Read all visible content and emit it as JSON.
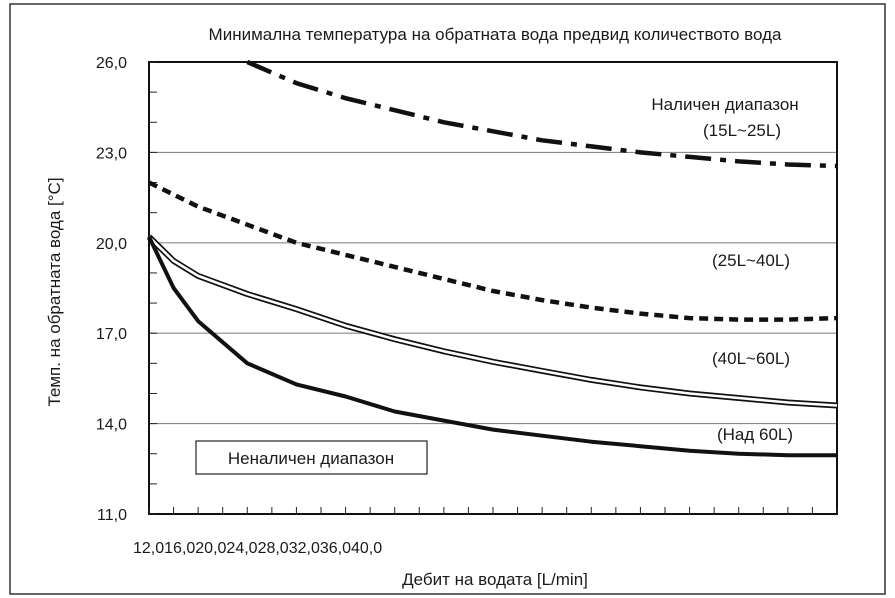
{
  "chart_data": {
    "type": "line",
    "title": "Минимална температура на обратната вода предвид количеството вода",
    "xlabel": "Дебит на водата [L/min]",
    "ylabel": "Темп. на обратната вода [°C]",
    "x_tick_text": "12,016,020,024,028,032,036,040,0",
    "y_ticks": [
      "26,0",
      "23,0",
      "20,0",
      "17,0",
      "14,0",
      "11,0"
    ],
    "y_tick_values": [
      26,
      23,
      20,
      17,
      14,
      11
    ],
    "xlim": [
      12,
      40
    ],
    "ylim": [
      11,
      26
    ],
    "grid": "horizontal",
    "annotations": {
      "range_available_title": "Наличен диапазон",
      "s1_label": "(15L~25L)",
      "s2_label": "(25L~40L)",
      "s3_label": "(40L~60L)",
      "s4_label": "(Над 60L)",
      "unavailable_label": "Неналичен диапазон"
    },
    "series": [
      {
        "style": "dash-dot",
        "x": [
          16.0,
          18.0,
          20.0,
          22.0,
          24.0,
          26.0,
          28.0,
          30.0,
          32.0,
          34.0,
          36.0,
          38.0,
          40.0
        ],
        "values": [
          26.0,
          25.3,
          24.8,
          24.4,
          24.0,
          23.7,
          23.4,
          23.2,
          23.0,
          22.85,
          22.7,
          22.6,
          22.55
        ]
      },
      {
        "style": "dashed",
        "x": [
          12.0,
          14.0,
          16.0,
          18.0,
          20.0,
          22.0,
          24.0,
          26.0,
          28.0,
          30.0,
          32.0,
          34.0,
          36.0,
          38.0,
          40.0
        ],
        "values": [
          22.0,
          21.2,
          20.6,
          20.0,
          19.6,
          19.2,
          18.8,
          18.4,
          18.1,
          17.85,
          17.65,
          17.5,
          17.45,
          17.45,
          17.5
        ]
      },
      {
        "style": "double",
        "x": [
          12.0,
          13.0,
          14.0,
          16.0,
          18.0,
          20.0,
          22.0,
          24.0,
          26.0,
          28.0,
          30.0,
          32.0,
          34.0,
          36.0,
          38.0,
          40.0
        ],
        "values": [
          20.2,
          19.4,
          18.9,
          18.3,
          17.8,
          17.25,
          16.8,
          16.4,
          16.05,
          15.75,
          15.45,
          15.2,
          15.0,
          14.85,
          14.7,
          14.6
        ]
      },
      {
        "style": "thick",
        "x": [
          12.0,
          13.0,
          14.0,
          16.0,
          18.0,
          20.0,
          22.0,
          24.0,
          26.0,
          28.0,
          30.0,
          32.0,
          34.0,
          36.0,
          38.0,
          40.0
        ],
        "values": [
          20.2,
          18.5,
          17.4,
          16.0,
          15.3,
          14.9,
          14.4,
          14.1,
          13.8,
          13.6,
          13.4,
          13.25,
          13.1,
          13.0,
          12.95,
          12.95
        ]
      }
    ]
  }
}
